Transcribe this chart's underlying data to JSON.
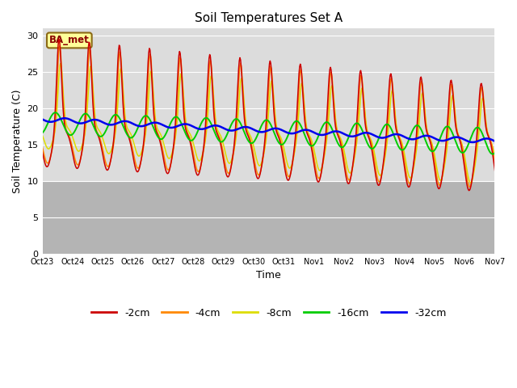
{
  "title": "Soil Temperatures Set A",
  "xlabel": "Time",
  "ylabel": "Soil Temperature (C)",
  "legend_label": "BA_met",
  "ylim": [
    0,
    31
  ],
  "yticks": [
    0,
    5,
    10,
    15,
    20,
    25,
    30
  ],
  "line_colors": {
    "-2cm": "#cc0000",
    "-4cm": "#ff8800",
    "-8cm": "#dddd00",
    "-16cm": "#00cc00",
    "-32cm": "#0000ee"
  },
  "xtick_labels": [
    "Oct 23",
    "Oct 24",
    "Oct 25",
    "Oct 26",
    "Oct 27",
    "Oct 28",
    "Oct 29",
    "Oct 30",
    "Oct 31",
    "Nov 1",
    "Nov 2",
    "Nov 3",
    "Nov 4",
    "Nov 5",
    "Nov 6",
    "Nov 7"
  ],
  "bg_main": "#dcdcdc",
  "bg_low": "#c8c8c8"
}
